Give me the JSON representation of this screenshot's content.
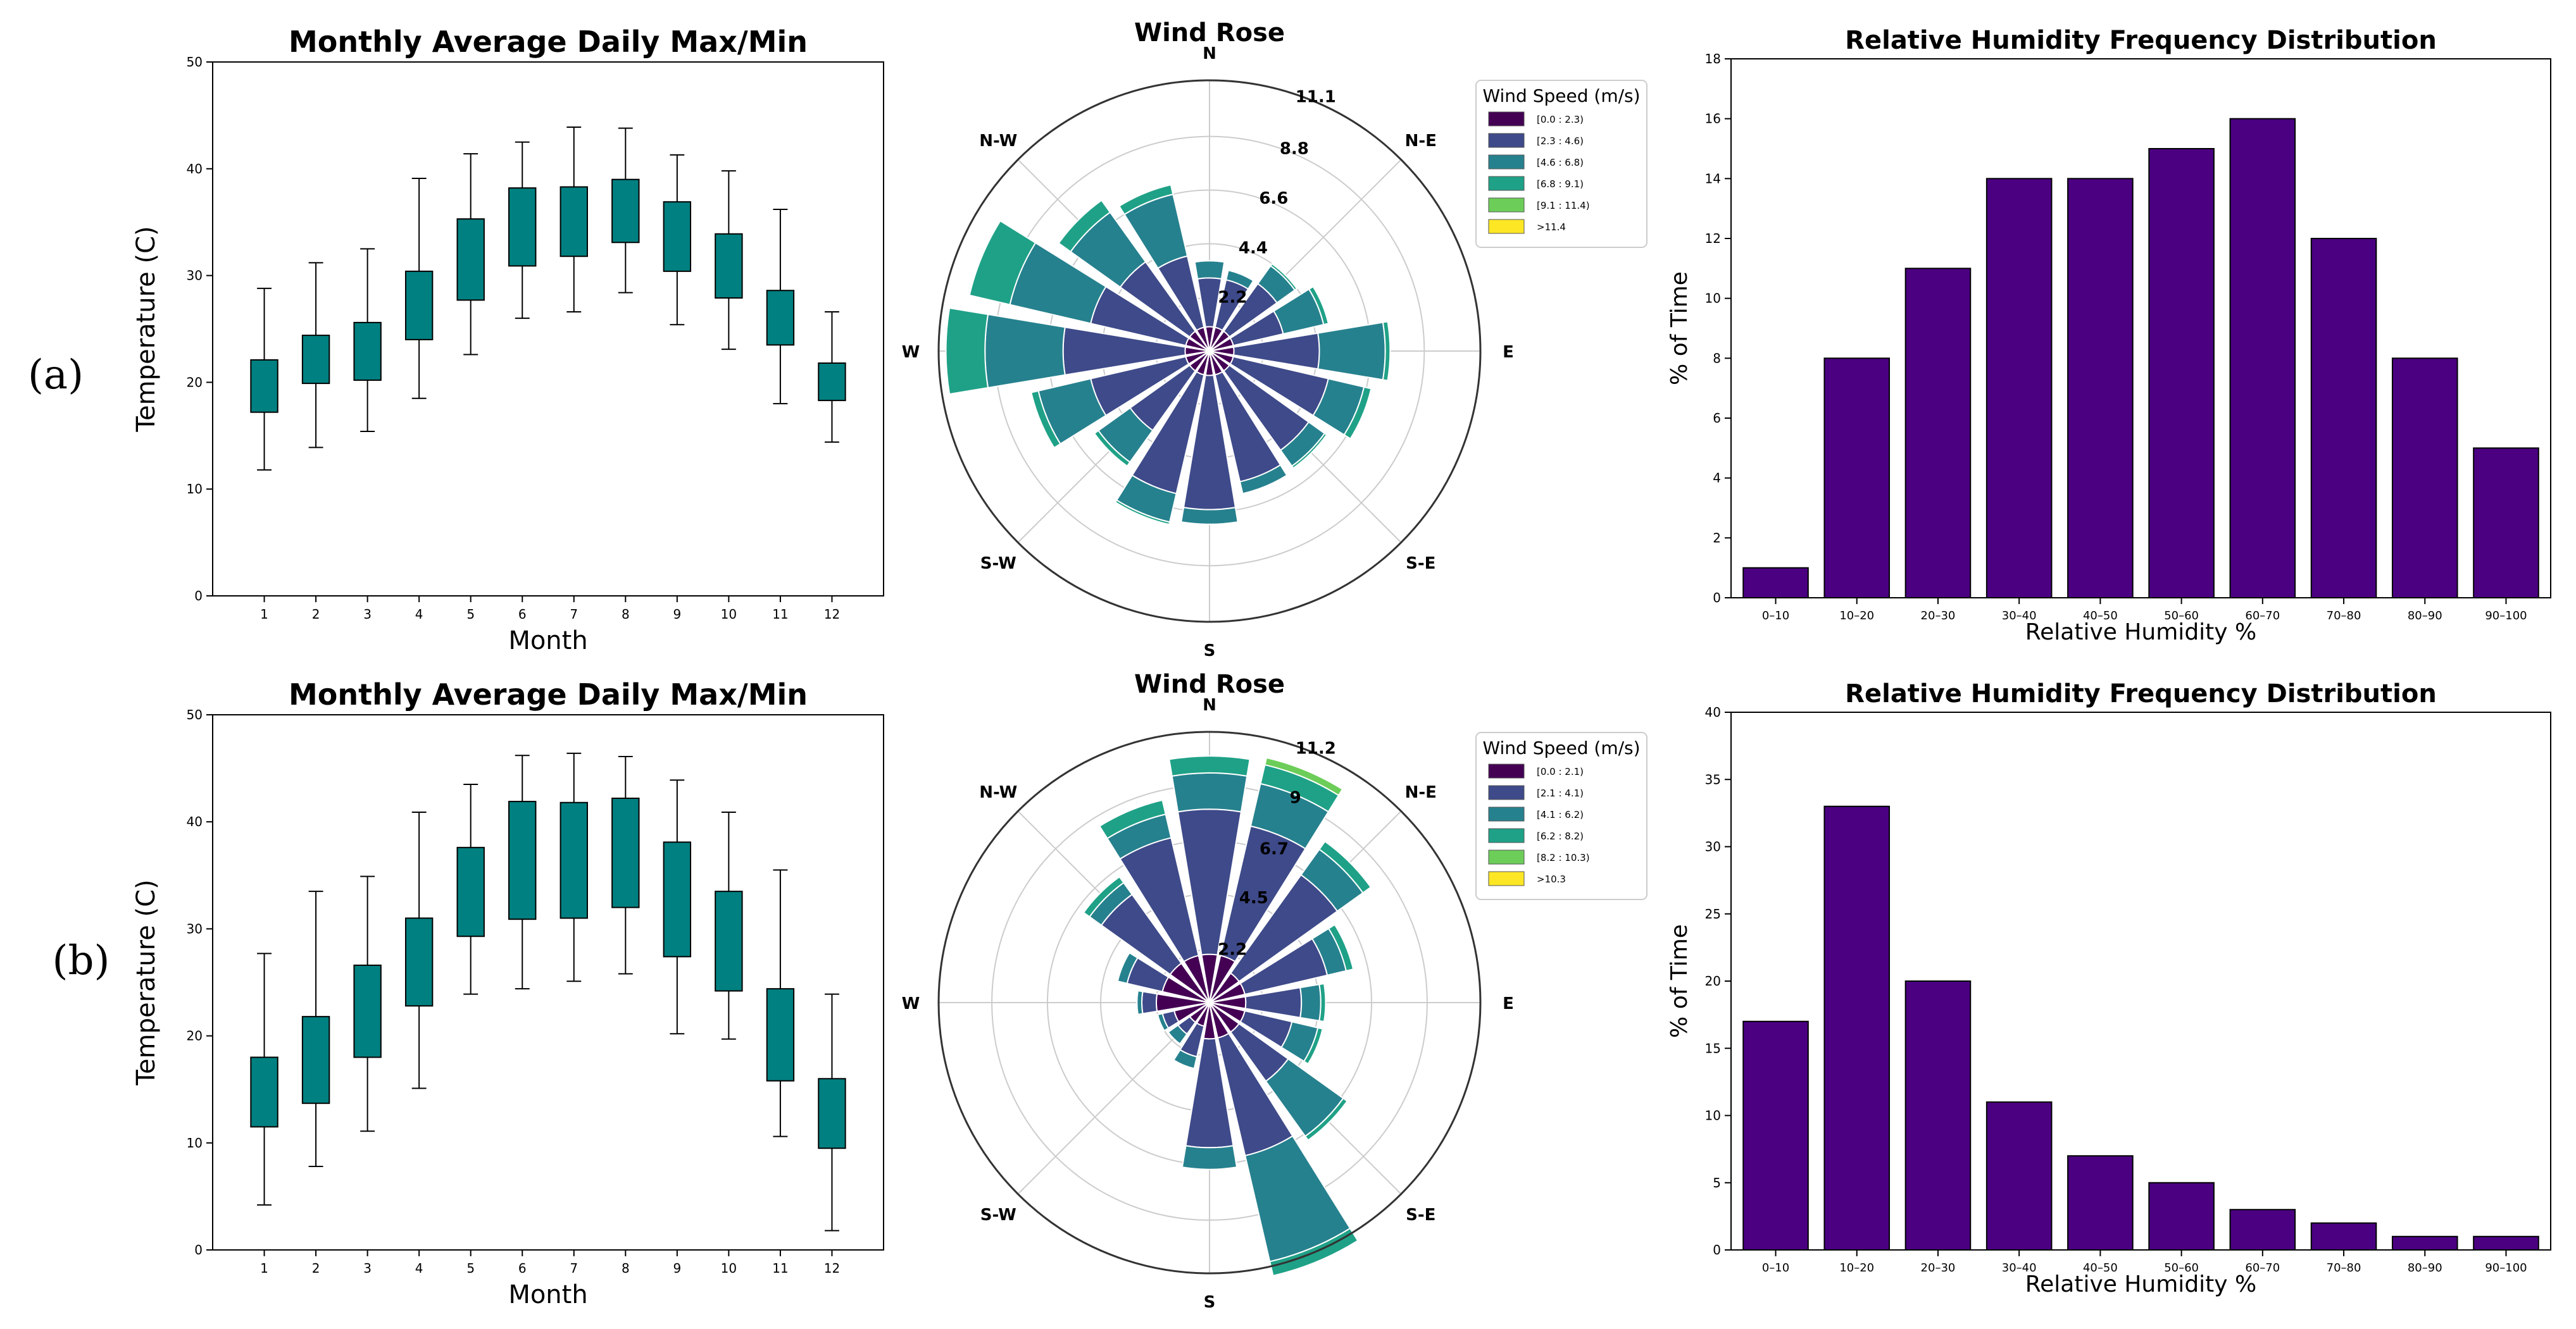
{
  "panel_labels": [
    "(a)",
    "(b)"
  ],
  "chart_data": [
    {
      "type": "boxplot",
      "title": "Monthly Average Daily Max/Min",
      "xlabel": "Month",
      "ylabel": "Temperature (C)",
      "ylim": [
        0,
        50
      ],
      "yticks": [
        0,
        10,
        20,
        30,
        40,
        50
      ],
      "categories": [
        "1",
        "2",
        "3",
        "4",
        "5",
        "6",
        "7",
        "8",
        "9",
        "10",
        "11",
        "12"
      ],
      "boxes": [
        {
          "min": 11.8,
          "q1": 17.2,
          "q3": 22.1,
          "max": 28.8
        },
        {
          "min": 13.9,
          "q1": 19.9,
          "q3": 24.4,
          "max": 31.2
        },
        {
          "min": 15.4,
          "q1": 20.2,
          "q3": 25.6,
          "max": 32.5
        },
        {
          "min": 18.5,
          "q1": 24.0,
          "q3": 30.4,
          "max": 39.1
        },
        {
          "min": 22.6,
          "q1": 27.7,
          "q3": 35.3,
          "max": 41.4
        },
        {
          "min": 26.0,
          "q1": 30.9,
          "q3": 38.2,
          "max": 42.5
        },
        {
          "min": 26.6,
          "q1": 31.8,
          "q3": 38.3,
          "max": 43.9
        },
        {
          "min": 28.4,
          "q1": 33.1,
          "q3": 39.0,
          "max": 43.8
        },
        {
          "min": 25.4,
          "q1": 30.4,
          "q3": 36.9,
          "max": 41.3
        },
        {
          "min": 23.1,
          "q1": 27.9,
          "q3": 33.9,
          "max": 39.8
        },
        {
          "min": 18.0,
          "q1": 23.5,
          "q3": 28.6,
          "max": 36.2
        },
        {
          "min": 14.4,
          "q1": 18.3,
          "q3": 21.8,
          "max": 26.6
        }
      ],
      "color": "#008080"
    },
    {
      "type": "windrose",
      "title": "Wind Rose",
      "directions": [
        "N",
        "N-E",
        "E",
        "S-E",
        "S",
        "S-W",
        "W",
        "N-W"
      ],
      "radial_max": 11.1,
      "radial_ticks": [
        2.2,
        4.4,
        6.6,
        8.8,
        11.1
      ],
      "legend_title": "Wind Speed (m/s)",
      "legend_labels": [
        "[0.0 : 2.3)",
        "[2.3 : 4.6)",
        "[4.6 : 6.8)",
        "[6.8 : 9.1)",
        "[9.1 : 11.4)",
        ">11.4"
      ],
      "bin_colors": [
        "#440154",
        "#3e4a89",
        "#26818e",
        "#1fa187",
        "#6ccd59",
        "#fde725"
      ],
      "sector_bearings_deg": [
        0,
        22.5,
        45,
        67.5,
        90,
        112.5,
        135,
        157.5,
        180,
        202.5,
        225,
        247.5,
        270,
        292.5,
        315,
        337.5
      ],
      "sectors_cumulative": [
        [
          1.0,
          3.0,
          3.7,
          3.7,
          3.7,
          3.7
        ],
        [
          1.0,
          3.0,
          3.4,
          3.4,
          3.4,
          3.4
        ],
        [
          1.0,
          3.4,
          4.3,
          4.4,
          4.4,
          4.4
        ],
        [
          1.0,
          3.1,
          4.8,
          5.0,
          5.0,
          5.0
        ],
        [
          1.0,
          4.5,
          7.2,
          7.4,
          7.4,
          7.4
        ],
        [
          1.0,
          5.0,
          6.5,
          6.8,
          6.8,
          6.8
        ],
        [
          1.0,
          5.0,
          5.8,
          5.9,
          5.9,
          5.9
        ],
        [
          1.0,
          5.5,
          6.0,
          6.0,
          6.0,
          6.0
        ],
        [
          1.0,
          6.5,
          7.1,
          7.1,
          7.1,
          7.1
        ],
        [
          1.0,
          6.0,
          7.2,
          7.3,
          7.3,
          7.3
        ],
        [
          1.0,
          4.0,
          5.6,
          5.8,
          5.8,
          5.8
        ],
        [
          1.0,
          5.0,
          7.2,
          7.5,
          7.5,
          7.5
        ],
        [
          1.0,
          6.0,
          9.2,
          10.8,
          10.8,
          10.8
        ],
        [
          1.0,
          5.0,
          8.4,
          10.1,
          10.1,
          10.1
        ],
        [
          1.0,
          4.5,
          7.0,
          7.6,
          7.6,
          7.6
        ],
        [
          1.0,
          4.0,
          6.6,
          7.0,
          7.0,
          7.0
        ]
      ]
    },
    {
      "type": "bar",
      "title": "Relative Humidity Frequency Distribution",
      "xlabel": "Relative Humidity %",
      "ylabel": "% of Time",
      "ylim": [
        0,
        18
      ],
      "yticks": [
        0,
        2,
        4,
        6,
        8,
        10,
        12,
        14,
        16,
        18
      ],
      "categories": [
        "0–10",
        "10–20",
        "20–30",
        "30–40",
        "40–50",
        "50–60",
        "60–70",
        "70–80",
        "80–90",
        "90–100"
      ],
      "values": [
        1,
        8,
        11,
        14,
        14,
        15,
        16,
        12,
        8,
        5
      ],
      "color": "#4b0082"
    },
    {
      "type": "boxplot",
      "title": "Monthly Average Daily Max/Min",
      "xlabel": "Month",
      "ylabel": "Temperature (C)",
      "ylim": [
        0,
        50
      ],
      "yticks": [
        0,
        10,
        20,
        30,
        40,
        50
      ],
      "categories": [
        "1",
        "2",
        "3",
        "4",
        "5",
        "6",
        "7",
        "8",
        "9",
        "10",
        "11",
        "12"
      ],
      "boxes": [
        {
          "min": 4.2,
          "q1": 11.5,
          "q3": 18.0,
          "max": 27.7
        },
        {
          "min": 7.8,
          "q1": 13.7,
          "q3": 21.8,
          "max": 33.5
        },
        {
          "min": 11.1,
          "q1": 18.0,
          "q3": 26.6,
          "max": 34.9
        },
        {
          "min": 15.1,
          "q1": 22.8,
          "q3": 31.0,
          "max": 40.9
        },
        {
          "min": 23.9,
          "q1": 29.3,
          "q3": 37.6,
          "max": 43.5
        },
        {
          "min": 24.4,
          "q1": 30.9,
          "q3": 41.9,
          "max": 46.2
        },
        {
          "min": 25.1,
          "q1": 31.0,
          "q3": 41.8,
          "max": 46.4
        },
        {
          "min": 25.8,
          "q1": 32.0,
          "q3": 42.2,
          "max": 46.1
        },
        {
          "min": 20.2,
          "q1": 27.4,
          "q3": 38.1,
          "max": 43.9
        },
        {
          "min": 19.7,
          "q1": 24.2,
          "q3": 33.5,
          "max": 40.9
        },
        {
          "min": 10.6,
          "q1": 15.8,
          "q3": 24.4,
          "max": 35.5
        },
        {
          "min": 1.8,
          "q1": 9.5,
          "q3": 16.0,
          "max": 23.9
        }
      ],
      "color": "#008080"
    },
    {
      "type": "windrose",
      "title": "Wind Rose",
      "directions": [
        "N",
        "N-E",
        "E",
        "S-E",
        "S",
        "S-W",
        "W",
        "N-W"
      ],
      "radial_max": 11.2,
      "radial_ticks": [
        2.2,
        4.5,
        6.7,
        9.0,
        11.2
      ],
      "legend_title": "Wind Speed (m/s)",
      "legend_labels": [
        "[0.0 : 2.1)",
        "[2.1 : 4.1)",
        "[4.1 : 6.2)",
        "[6.2 : 8.2)",
        "[8.2 : 10.3)",
        ">10.3"
      ],
      "bin_colors": [
        "#440154",
        "#3e4a89",
        "#26818e",
        "#1fa187",
        "#6ccd59",
        "#fde725"
      ],
      "sector_bearings_deg": [
        0,
        22.5,
        45,
        67.5,
        90,
        112.5,
        135,
        157.5,
        180,
        202.5,
        225,
        247.5,
        270,
        292.5,
        315,
        337.5
      ],
      "sectors_cumulative": [
        [
          2.0,
          8.0,
          9.5,
          10.2,
          10.2,
          10.2
        ],
        [
          2.0,
          7.5,
          9.3,
          10.1,
          10.4,
          10.4
        ],
        [
          1.5,
          6.5,
          7.8,
          8.2,
          8.2,
          8.2
        ],
        [
          1.5,
          5.0,
          5.8,
          6.1,
          6.1,
          6.1
        ],
        [
          1.5,
          3.8,
          4.6,
          4.8,
          4.8,
          4.8
        ],
        [
          1.5,
          3.5,
          4.6,
          4.8,
          4.8,
          4.8
        ],
        [
          1.5,
          4.0,
          6.8,
          7.0,
          7.0,
          7.0
        ],
        [
          1.5,
          6.5,
          11.0,
          11.6,
          11.6,
          11.6
        ],
        [
          1.5,
          6.0,
          6.9,
          6.9,
          6.9,
          6.9
        ],
        [
          1.0,
          2.3,
          2.8,
          2.8,
          2.8,
          2.8
        ],
        [
          1.0,
          1.6,
          2.1,
          2.1,
          2.1,
          2.1
        ],
        [
          1.5,
          2.0,
          2.2,
          2.2,
          2.2,
          2.2
        ],
        [
          2.2,
          2.8,
          3.0,
          3.0,
          3.0,
          3.0
        ],
        [
          2.0,
          3.5,
          3.9,
          3.9,
          3.9,
          3.9
        ],
        [
          2.0,
          5.5,
          6.1,
          6.4,
          6.4,
          6.4
        ],
        [
          2.0,
          7.0,
          8.0,
          8.6,
          8.6,
          8.6
        ]
      ]
    },
    {
      "type": "bar",
      "title": "Relative Humidity Frequency Distribution",
      "xlabel": "Relative Humidity %",
      "ylabel": "% of Time",
      "ylim": [
        0,
        40
      ],
      "yticks": [
        0,
        5,
        10,
        15,
        20,
        25,
        30,
        35,
        40
      ],
      "categories": [
        "0–10",
        "10–20",
        "20–30",
        "30–40",
        "40–50",
        "50–60",
        "60–70",
        "70–80",
        "80–90",
        "90–100"
      ],
      "values": [
        17,
        33,
        20,
        11,
        7,
        5,
        3,
        2,
        1,
        1
      ],
      "color": "#4b0082"
    }
  ]
}
